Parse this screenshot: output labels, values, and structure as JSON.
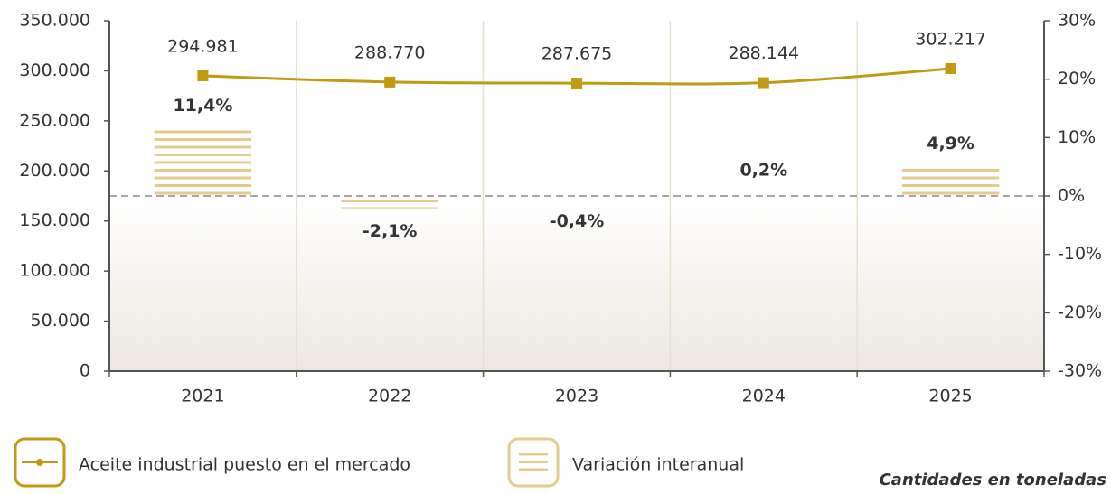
{
  "chart_data": {
    "type": "combo",
    "categories": [
      "2021",
      "2022",
      "2023",
      "2024",
      "2025"
    ],
    "series": [
      {
        "name": "Aceite industrial puesto en el mercado",
        "type": "line",
        "color": "#c09a10",
        "values": [
          294981,
          288770,
          287675,
          288144,
          302217
        ],
        "value_labels": [
          "294.981",
          "288.770",
          "287.675",
          "288.144",
          "302.217"
        ]
      },
      {
        "name": "Variación interanual",
        "type": "bar",
        "axis": "y2",
        "color": "#e3cc8e",
        "values": [
          11.4,
          -2.1,
          -0.4,
          0.2,
          4.9
        ],
        "value_labels": [
          "11,4%",
          "-2,1%",
          "-0,4%",
          "0,2%",
          "4,9%"
        ]
      }
    ],
    "ylim": [
      0,
      350000
    ],
    "yticks": [
      0,
      {
        "value": 50000,
        "label": "50.000"
      },
      {
        "value": 100000,
        "label": "100.000"
      },
      {
        "value": 150000,
        "label": "150.000"
      },
      {
        "value": 200000,
        "label": "200.000"
      },
      {
        "value": 250000,
        "label": "250.000"
      },
      {
        "value": 300000,
        "label": "300.000"
      },
      {
        "value": 350000,
        "label": "350.000"
      }
    ],
    "y2lim": [
      -30,
      30
    ],
    "y2ticks": [
      {
        "value": -30,
        "label": "-30%"
      },
      {
        "value": -20,
        "label": "-20%"
      },
      {
        "value": -10,
        "label": "-10%"
      },
      {
        "value": 0,
        "label": "0%"
      },
      {
        "value": 10,
        "label": "10%"
      },
      {
        "value": 20,
        "label": "20%"
      },
      {
        "value": 30,
        "label": "30%"
      }
    ],
    "annotation": "Cantidades en toneladas"
  }
}
